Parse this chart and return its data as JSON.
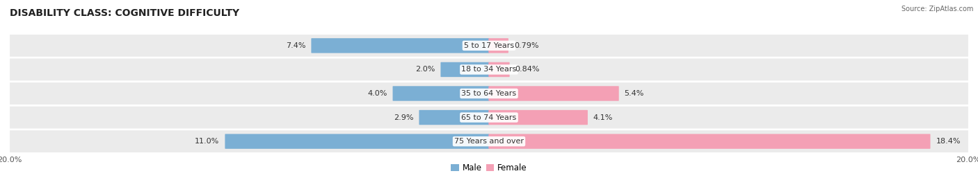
{
  "title": "DISABILITY CLASS: COGNITIVE DIFFICULTY",
  "source": "Source: ZipAtlas.com",
  "categories": [
    "5 to 17 Years",
    "18 to 34 Years",
    "35 to 64 Years",
    "65 to 74 Years",
    "75 Years and over"
  ],
  "male_values": [
    7.4,
    2.0,
    4.0,
    2.9,
    11.0
  ],
  "female_values": [
    0.79,
    0.84,
    5.4,
    4.1,
    18.4
  ],
  "male_color": "#7bafd4",
  "female_color": "#f4a0b5",
  "male_label": "Male",
  "female_label": "Female",
  "axis_max": 20.0,
  "row_bg_color": "#ebebeb",
  "title_fontsize": 10,
  "label_fontsize": 8,
  "tick_label_fontsize": 8,
  "value_text_color": "#333333",
  "center_text_color": "#333333"
}
